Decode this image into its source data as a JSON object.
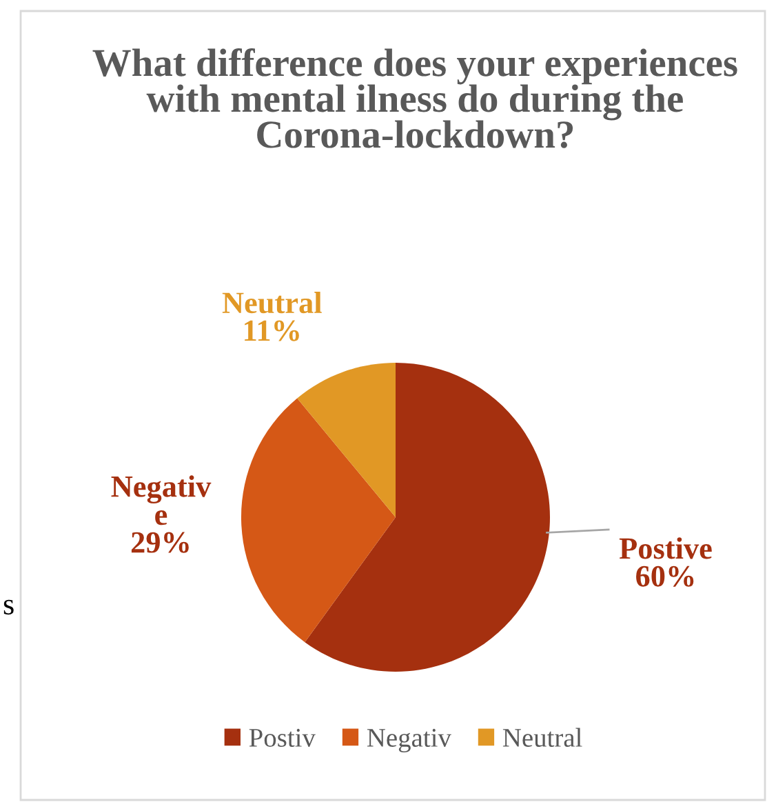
{
  "chart_data": {
    "type": "pie",
    "title": "What difference does your experiences with mental ilness do during the Corona-lockdown?",
    "categories": [
      "Postiv",
      "Negativ",
      "Neutral"
    ],
    "values": [
      60,
      29,
      11
    ],
    "colors": [
      "#a5300f",
      "#d55816",
      "#e19825"
    ],
    "value_labels": [
      "Postive\n60%",
      "Negativ\ne\n29%",
      "Neutral\n11%"
    ],
    "legend": "bottom",
    "annotations": [
      "s"
    ]
  }
}
